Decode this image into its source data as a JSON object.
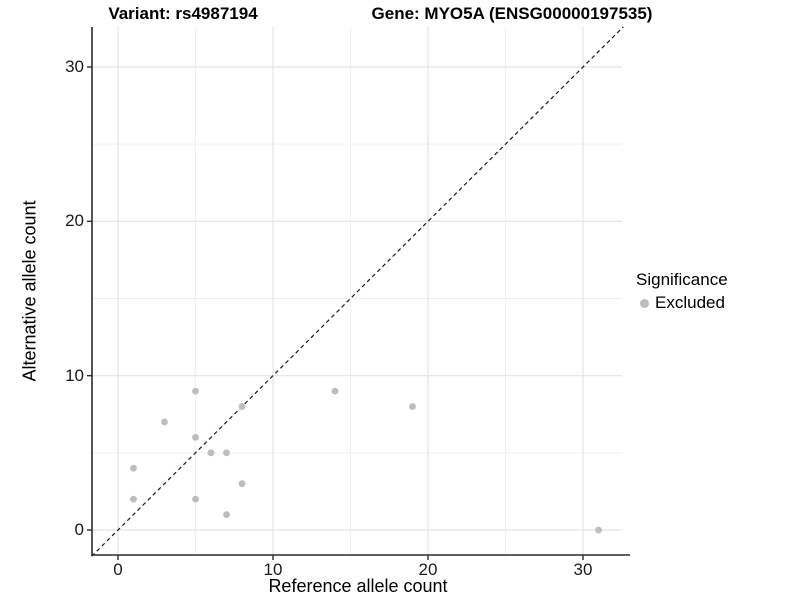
{
  "title": {
    "variant": "Variant: rs4987194",
    "gene": "Gene: MYO5A (ENSG00000197535)"
  },
  "chart_data": {
    "type": "scatter",
    "title": "Variant: rs4987194   Gene: MYO5A (ENSG00000197535)",
    "xlabel": "Reference allele count",
    "ylabel": "Alternative allele count",
    "x_ticks": [
      0,
      10,
      20,
      30
    ],
    "y_ticks": [
      0,
      10,
      20,
      30
    ],
    "minor_ticks": [
      5,
      15,
      25
    ],
    "xlim": [
      -1.7,
      32.6
    ],
    "ylim": [
      -1.7,
      32.6
    ],
    "grid": true,
    "identity_line": {
      "style": "dashed",
      "color": "#1a1a1a",
      "from": [
        -1.7,
        -1.7
      ],
      "to": [
        32.6,
        32.6
      ]
    },
    "series": [
      {
        "name": "Excluded",
        "color": "#bdbdbd",
        "points": [
          [
            1,
            2
          ],
          [
            1,
            4
          ],
          [
            3,
            7
          ],
          [
            5,
            2
          ],
          [
            5,
            6
          ],
          [
            5,
            9
          ],
          [
            6,
            5
          ],
          [
            7,
            1
          ],
          [
            7,
            5
          ],
          [
            8,
            3
          ],
          [
            8,
            8
          ],
          [
            14,
            9
          ],
          [
            19,
            8
          ],
          [
            31,
            0
          ]
        ]
      }
    ],
    "legend": {
      "title": "Significance",
      "position": "right",
      "items": [
        {
          "label": "Excluded",
          "color": "#bdbdbd"
        }
      ]
    },
    "colors": {
      "major_grid": "#e4e4e4",
      "minor_grid": "#efefef",
      "axis_line": "#2b2b2b",
      "point": "#bdbdbd",
      "background": "#ffffff"
    }
  }
}
